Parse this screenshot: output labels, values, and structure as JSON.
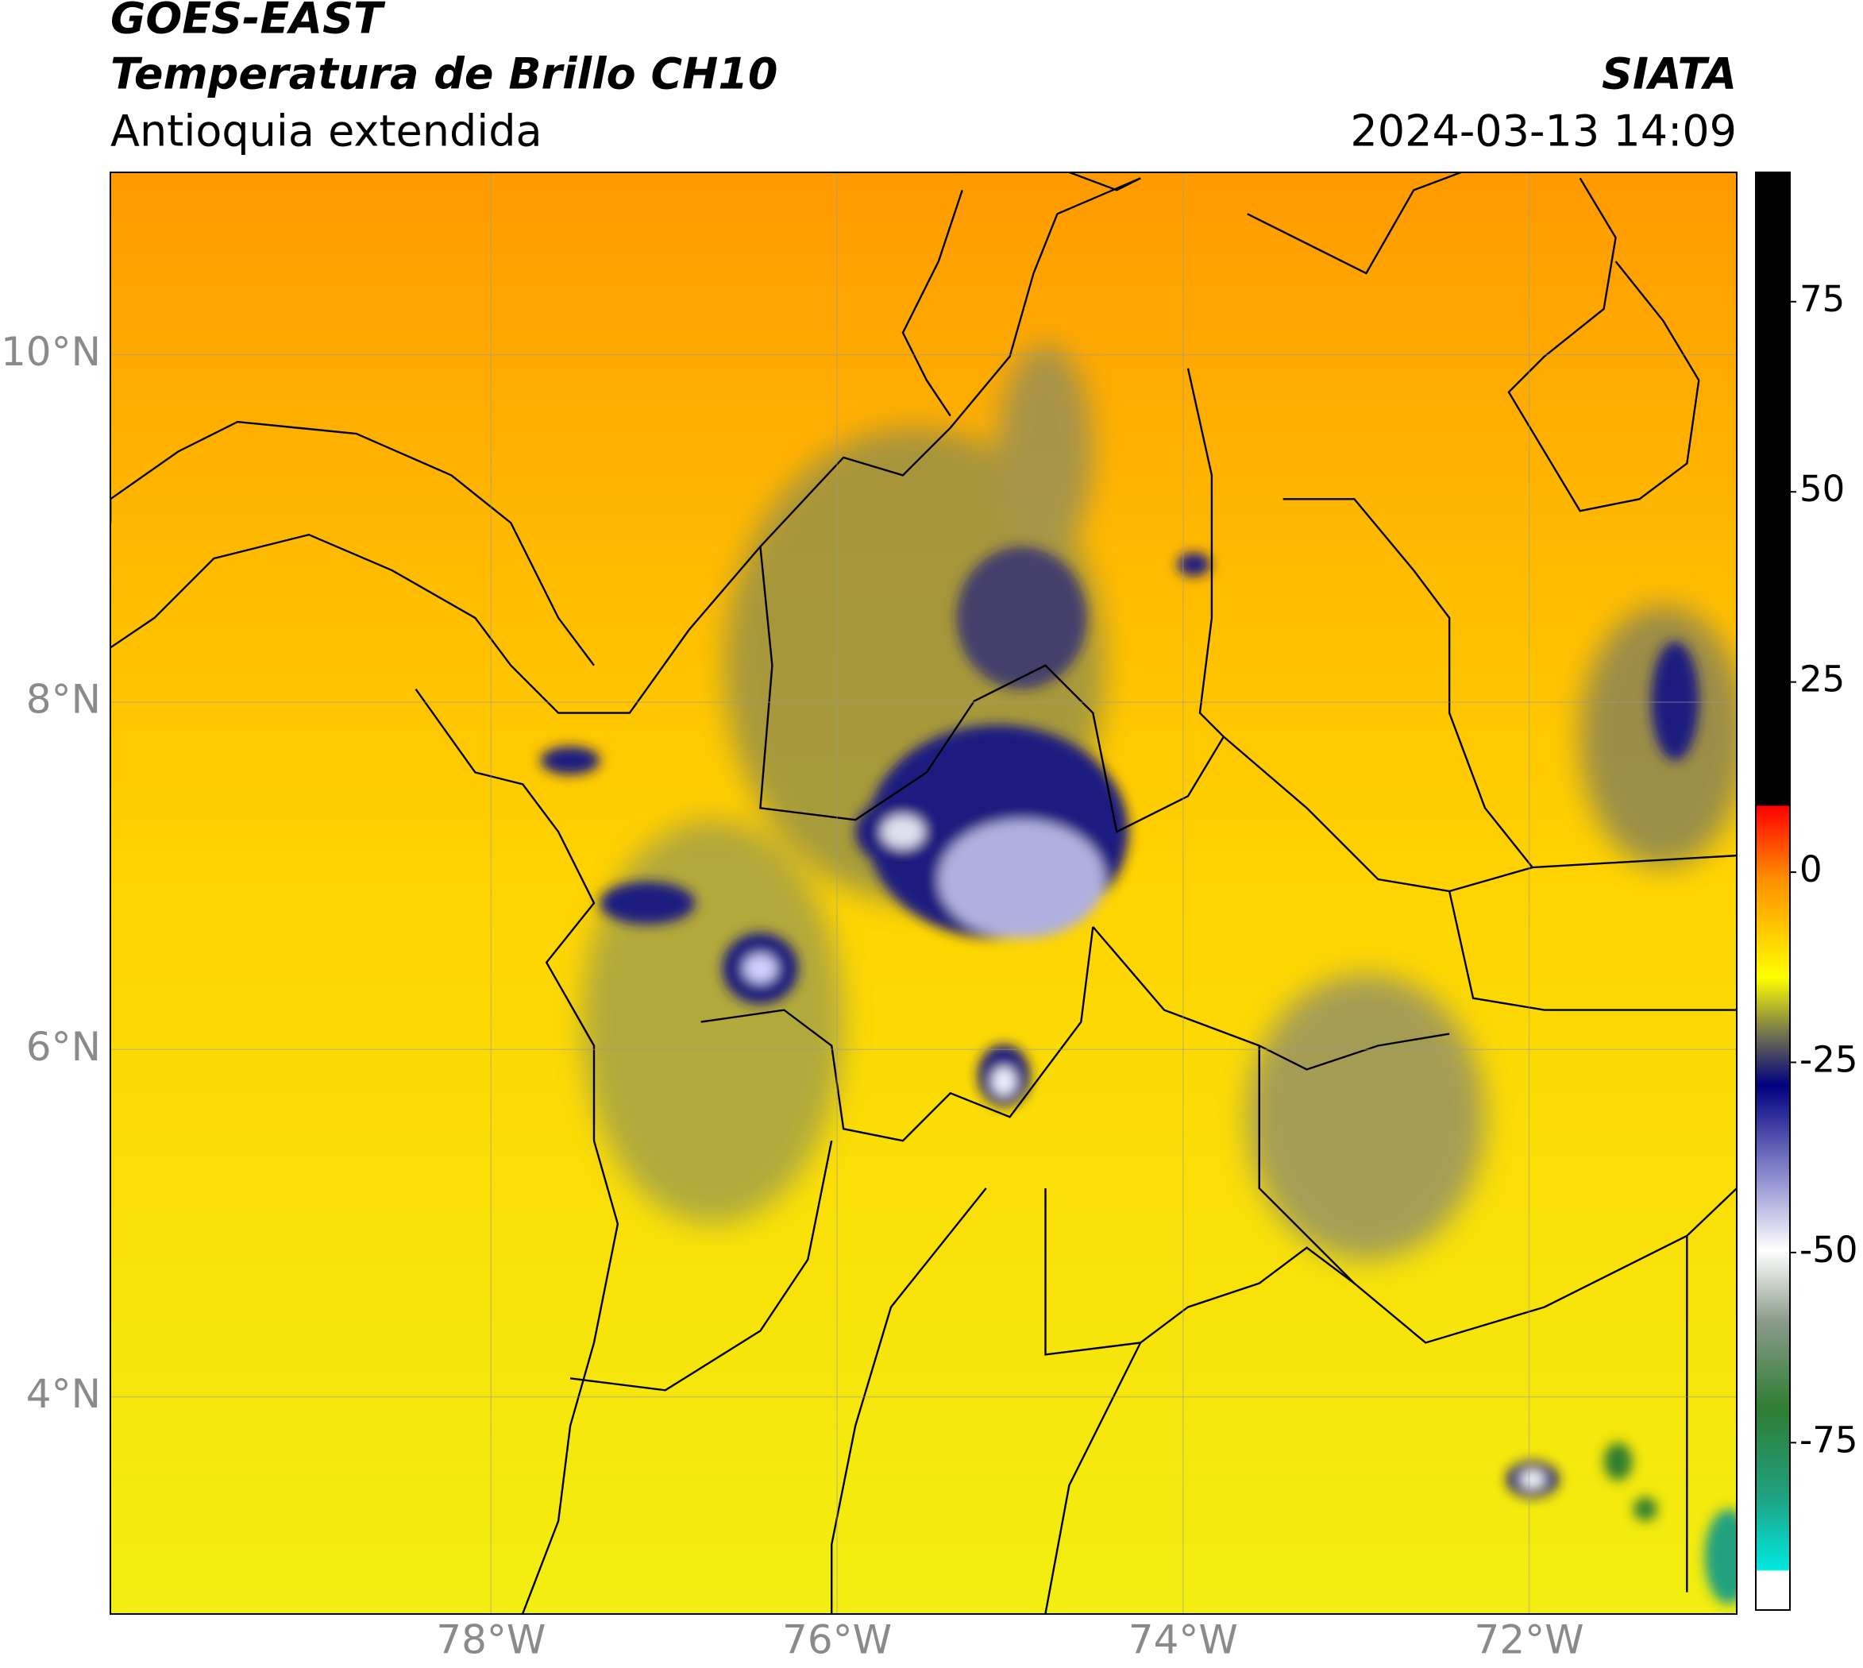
{
  "header": {
    "title": "GOES-EAST",
    "subtitle": "Temperatura de Brillo CH10",
    "region": "Antioquia extendida",
    "source": "SIATA",
    "datetime": "2024-03-13 14:09"
  },
  "map": {
    "xlim": [
      -80.2,
      -70.8
    ],
    "ylim": [
      2.75,
      11.05
    ],
    "xticks": [
      {
        "value": -78,
        "label": "78°W"
      },
      {
        "value": -76,
        "label": "76°W"
      },
      {
        "value": -74,
        "label": "74°W"
      },
      {
        "value": -72,
        "label": "72°W"
      }
    ],
    "yticks": [
      {
        "value": 4,
        "label": "4°N"
      },
      {
        "value": 6,
        "label": "6°N"
      },
      {
        "value": 8,
        "label": "8°N"
      },
      {
        "value": 10,
        "label": "10°N"
      }
    ],
    "grid": true
  },
  "colorbar": {
    "lim": [
      -97,
      92
    ],
    "ticks": [
      -75,
      -50,
      -25,
      0,
      25,
      50,
      75
    ]
  }
}
